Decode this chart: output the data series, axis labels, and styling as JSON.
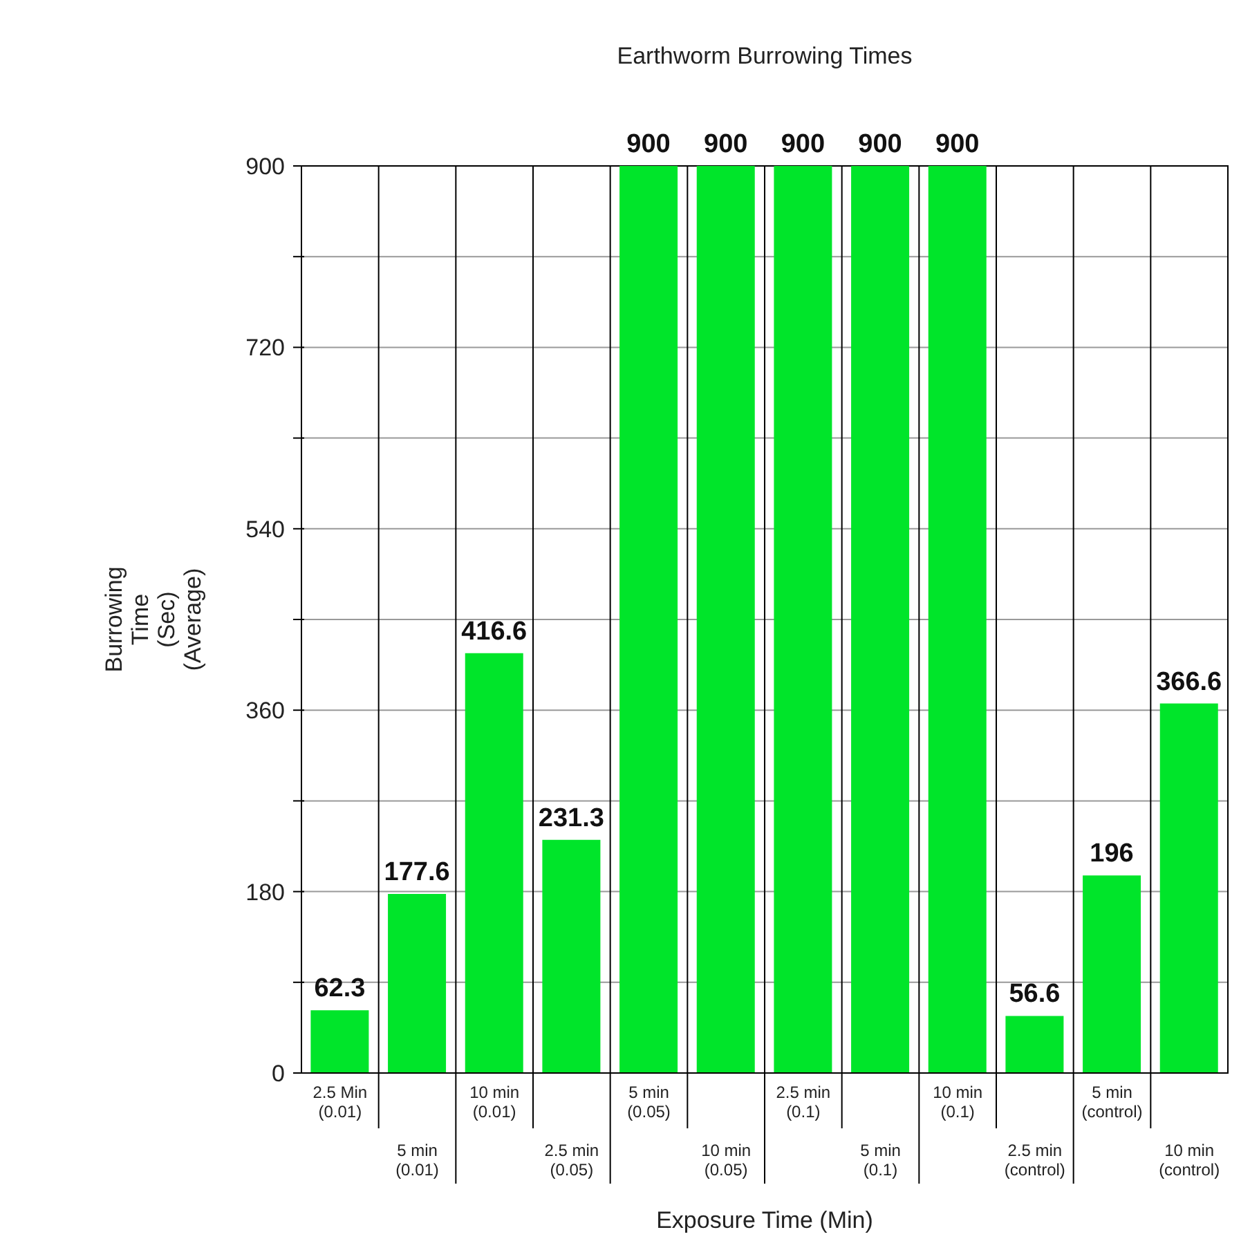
{
  "chart_data": {
    "type": "bar",
    "title": "Earthworm Burrowing Times",
    "xlabel": "Exposure Time (Min)",
    "ylabel": "Burrowing\nTime\n(Sec)\n(Average)",
    "categories": [
      "2.5 Min\n(0.01)",
      "5 min\n(0.01)",
      "10 min\n(0.01)",
      "2.5 min\n(0.05)",
      "5 min\n(0.05)",
      "10 min\n(0.05)",
      "2.5 min\n(0.1)",
      "5 min\n(0.1)",
      "10 min\n(0.1)",
      "2.5 min\n(control)",
      "5 min\n(control)",
      "10 min\n(control)"
    ],
    "values": [
      62.3,
      177.6,
      416.6,
      231.3,
      900,
      900,
      900,
      900,
      900,
      56.6,
      196,
      366.6
    ],
    "color": "#00e52a",
    "ylim": [
      0,
      900
    ],
    "yticks": [
      0,
      {
        "value": 90,
        "label": null
      },
      180,
      {
        "value": 270,
        "label": null
      },
      360,
      {
        "value": 450,
        "label": null
      },
      540,
      {
        "value": 630,
        "label": null
      },
      720,
      {
        "value": 810,
        "label": null
      },
      900
    ],
    "grid": true,
    "data_labels": true
  }
}
